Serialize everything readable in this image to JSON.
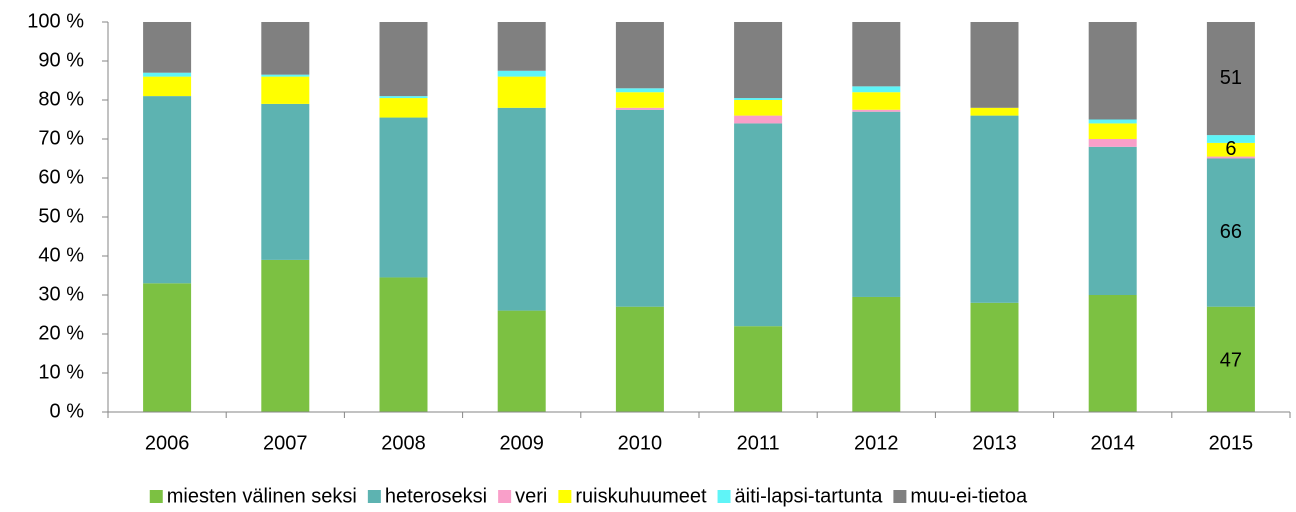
{
  "chart_data": {
    "type": "stacked_bar",
    "categories": [
      "2006",
      "2007",
      "2008",
      "2009",
      "2010",
      "2011",
      "2012",
      "2013",
      "2014",
      "2015"
    ],
    "series": [
      {
        "name": "miesten välinen seksi",
        "color": "#7cc142",
        "values": [
          33,
          39,
          34.5,
          26,
          27,
          22,
          29.5,
          28,
          30,
          27
        ]
      },
      {
        "name": "heteroseksi",
        "color": "#5db3b1",
        "values": [
          48,
          40,
          41,
          52,
          50.5,
          52,
          47.5,
          48,
          38,
          38
        ]
      },
      {
        "name": "veri",
        "color": "#f99fc9",
        "values": [
          0,
          0,
          0,
          0,
          0.5,
          2,
          0.5,
          0,
          2,
          0.5
        ]
      },
      {
        "name": "ruiskuhuumeet",
        "color": "#ffff00",
        "values": [
          5,
          7,
          5,
          8,
          4,
          4,
          4.5,
          2,
          4,
          3.5
        ]
      },
      {
        "name": "äiti-lapsi-tartunta",
        "color": "#5ff4f7",
        "values": [
          1,
          0.5,
          0.5,
          1.5,
          1,
          0.5,
          1.5,
          0,
          1,
          2
        ]
      },
      {
        "name": "muu-ei-tietoa",
        "color": "#808080",
        "values": [
          13,
          13.5,
          19,
          12.5,
          17,
          19.5,
          16.5,
          22,
          25,
          29
        ]
      }
    ],
    "annotations": [
      "47",
      "66",
      "6",
      "51"
    ],
    "ylim": [
      0,
      100
    ],
    "yticks": [
      {
        "value": 0,
        "label": "0 %"
      },
      {
        "value": 10,
        "label": "10 %"
      },
      {
        "value": 20,
        "label": "20 %"
      },
      {
        "value": 30,
        "label": "30 %"
      },
      {
        "value": 40,
        "label": "40 %"
      },
      {
        "value": 50,
        "label": "50 %"
      },
      {
        "value": 60,
        "label": "60 %"
      },
      {
        "value": 70,
        "label": "70 %"
      },
      {
        "value": 80,
        "label": "80 %"
      },
      {
        "value": 90,
        "label": "90 %"
      },
      {
        "value": 100,
        "label": "100 %"
      }
    ],
    "legend": "bottom"
  }
}
